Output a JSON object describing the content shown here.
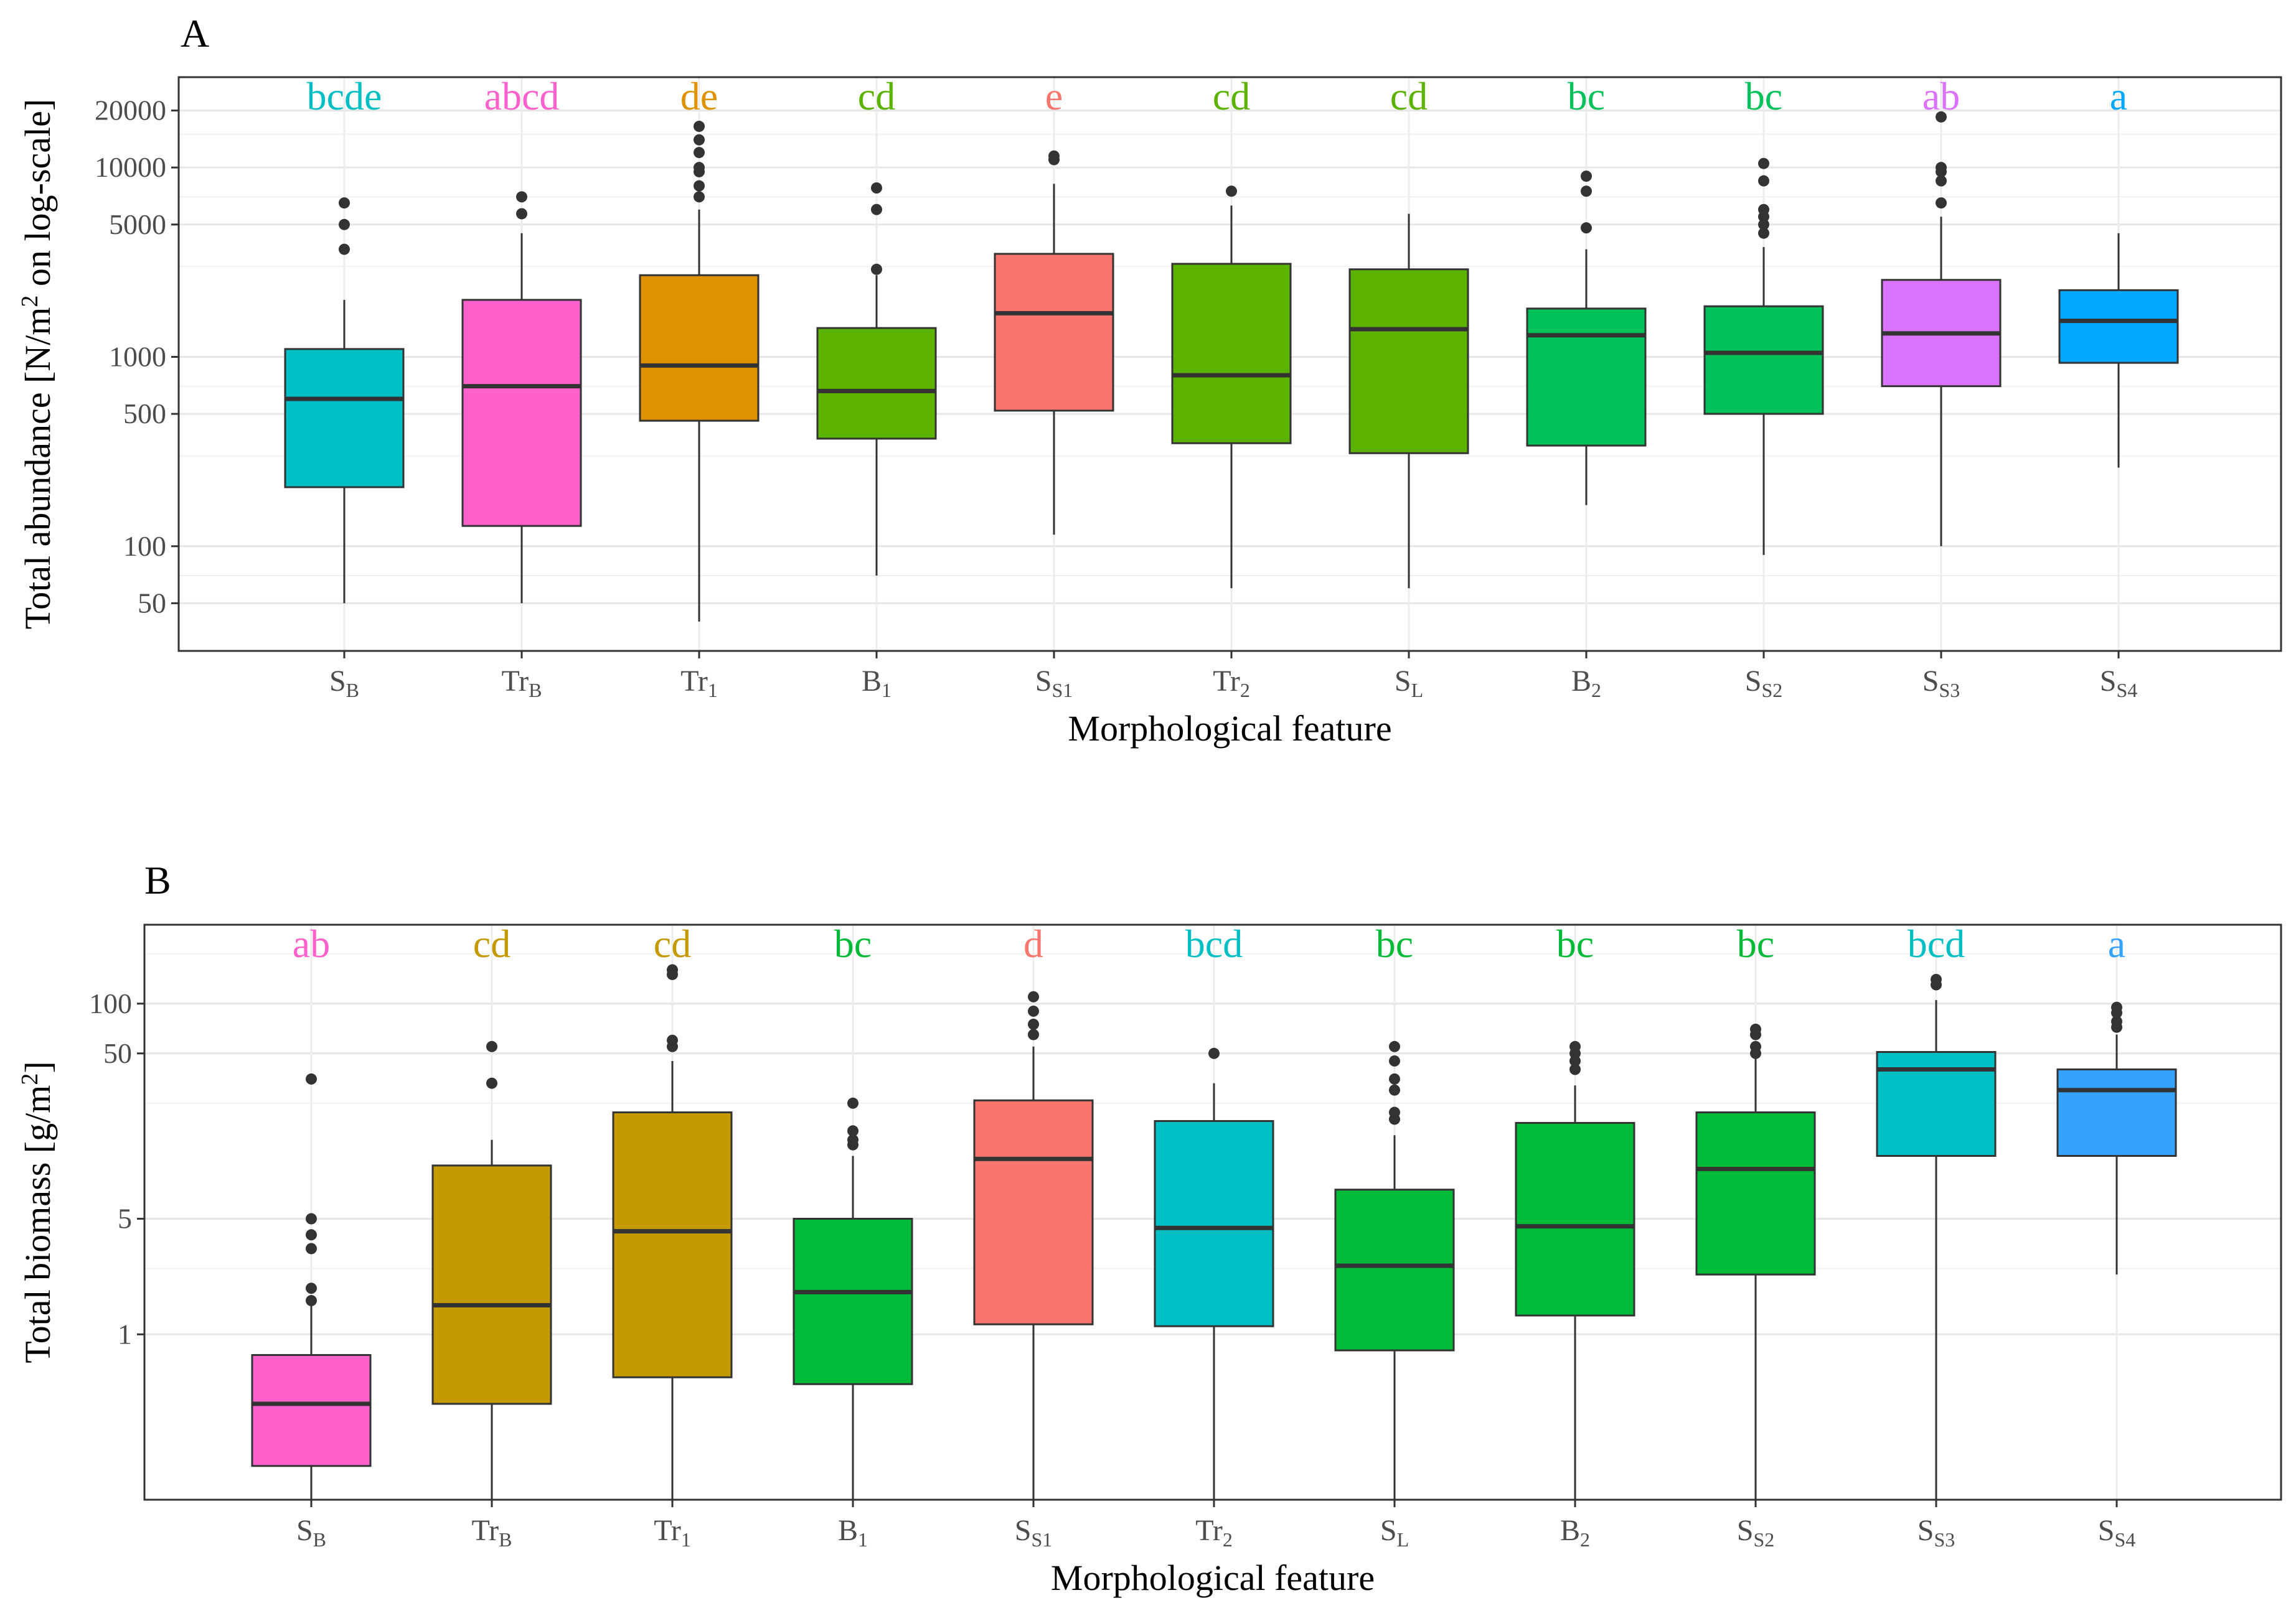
{
  "chart_data": [
    {
      "type": "boxplot",
      "panel_label": "A",
      "ylabel": "Total abundance [N/m² on log-scale]",
      "ylabel_parts": [
        "Total abundance [N/m",
        "2",
        " on log-scale]"
      ],
      "xlabel": "Morphological feature",
      "yscale": "log",
      "ylim": [
        28,
        30000
      ],
      "yticks": [
        50,
        100,
        500,
        1000,
        5000,
        10000,
        20000
      ],
      "ytick_labels": [
        "50",
        "100",
        "500",
        "1000",
        "5000",
        "10000",
        "20000"
      ],
      "minor_gridlines": [
        70,
        300,
        700,
        3000,
        7000,
        15000
      ],
      "categories": [
        {
          "main": "S",
          "sub": "B"
        },
        {
          "main": "Tr",
          "sub": "B"
        },
        {
          "main": "Tr",
          "sub": "1"
        },
        {
          "main": "B",
          "sub": "1"
        },
        {
          "main": "S",
          "sub": "S1"
        },
        {
          "main": "Tr",
          "sub": "2"
        },
        {
          "main": "S",
          "sub": "L"
        },
        {
          "main": "B",
          "sub": "2"
        },
        {
          "main": "S",
          "sub": "S2"
        },
        {
          "main": "S",
          "sub": "S3"
        },
        {
          "main": "S",
          "sub": "S4"
        }
      ],
      "boxes": [
        {
          "q1": 205,
          "median": 600,
          "q3": 1100,
          "whisker_low": 50,
          "whisker_high": 2000,
          "outliers": [
            3700,
            5000,
            6500
          ],
          "color": "#00BFC4",
          "letters": "bcde"
        },
        {
          "q1": 128,
          "median": 700,
          "q3": 2000,
          "whisker_low": 50,
          "whisker_high": 4500,
          "outliers": [
            5700,
            7000
          ],
          "color": "#FF61CC",
          "letters": "abcd"
        },
        {
          "q1": 460,
          "median": 900,
          "q3": 2700,
          "whisker_low": 40,
          "whisker_high": 6000,
          "outliers": [
            7000,
            8000,
            9500,
            10000,
            12000,
            14000,
            16500
          ],
          "color": "#DE9200",
          "letters": "de"
        },
        {
          "q1": 370,
          "median": 660,
          "q3": 1420,
          "whisker_low": 70,
          "whisker_high": 2700,
          "outliers": [
            2900,
            6000,
            7800
          ],
          "color": "#5BB300",
          "letters": "cd"
        },
        {
          "q1": 520,
          "median": 1700,
          "q3": 3500,
          "whisker_low": 115,
          "whisker_high": 8200,
          "outliers": [
            11000,
            11500
          ],
          "color": "#F8766D",
          "letters": "e"
        },
        {
          "q1": 350,
          "median": 800,
          "q3": 3100,
          "whisker_low": 60,
          "whisker_high": 6300,
          "outliers": [
            7500
          ],
          "color": "#5BB300",
          "letters": "cd"
        },
        {
          "q1": 310,
          "median": 1400,
          "q3": 2900,
          "whisker_low": 60,
          "whisker_high": 5700,
          "outliers": [],
          "color": "#5BB300",
          "letters": "cd"
        },
        {
          "q1": 340,
          "median": 1300,
          "q3": 1800,
          "whisker_low": 165,
          "whisker_high": 3700,
          "outliers": [
            4800,
            7500,
            9000
          ],
          "color": "#00C15A",
          "letters": "bc"
        },
        {
          "q1": 500,
          "median": 1050,
          "q3": 1850,
          "whisker_low": 90,
          "whisker_high": 3800,
          "outliers": [
            4500,
            5000,
            5500,
            6000,
            8500,
            10500
          ],
          "color": "#00C15A",
          "letters": "bc"
        },
        {
          "q1": 700,
          "median": 1330,
          "q3": 2550,
          "whisker_low": 100,
          "whisker_high": 5500,
          "outliers": [
            6500,
            8500,
            9500,
            10000,
            18500
          ],
          "color": "#DB72FB",
          "letters": "ab"
        },
        {
          "q1": 930,
          "median": 1550,
          "q3": 2250,
          "whisker_low": 260,
          "whisker_high": 4500,
          "outliers": [],
          "color": "#00A9FF",
          "letters": "a"
        }
      ]
    },
    {
      "type": "boxplot",
      "panel_label": "B",
      "ylabel": "Total biomass [g/m²]",
      "ylabel_parts": [
        "Total biomass [g/m",
        "2",
        "]"
      ],
      "xlabel": "Morphological feature",
      "yscale": "log",
      "ylim": [
        0.1,
        300
      ],
      "yticks": [
        1,
        5,
        50,
        100
      ],
      "ytick_labels": [
        "1",
        "5",
        "50",
        "100"
      ],
      "minor_gridlines": [
        2.5,
        25,
        200
      ],
      "categories": [
        {
          "main": "S",
          "sub": "B"
        },
        {
          "main": "Tr",
          "sub": "B"
        },
        {
          "main": "Tr",
          "sub": "1"
        },
        {
          "main": "B",
          "sub": "1"
        },
        {
          "main": "S",
          "sub": "S1"
        },
        {
          "main": "Tr",
          "sub": "2"
        },
        {
          "main": "S",
          "sub": "L"
        },
        {
          "main": "B",
          "sub": "2"
        },
        {
          "main": "S",
          "sub": "S2"
        },
        {
          "main": "S",
          "sub": "S3"
        },
        {
          "main": "S",
          "sub": "S4"
        }
      ],
      "boxes": [
        {
          "q1": 0.16,
          "median": 0.38,
          "q3": 0.75,
          "whisker_low": 0.1,
          "whisker_high": 1.5,
          "outliers": [
            1.6,
            1.9,
            3.3,
            4.0,
            5.0,
            35
          ],
          "color": "#FF61CC",
          "letters": "ab"
        },
        {
          "q1": 0.38,
          "median": 1.5,
          "q3": 10.5,
          "whisker_low": 0.1,
          "whisker_high": 15,
          "outliers": [
            33,
            55
          ],
          "color": "#C49A00",
          "letters": "cd"
        },
        {
          "q1": 0.55,
          "median": 4.2,
          "q3": 22,
          "whisker_low": 0.1,
          "whisker_high": 45,
          "outliers": [
            55,
            60,
            150,
            160
          ],
          "color": "#C49A00",
          "letters": "cd"
        },
        {
          "q1": 0.5,
          "median": 1.8,
          "q3": 5.0,
          "whisker_low": 0.1,
          "whisker_high": 12,
          "outliers": [
            14,
            15,
            17,
            25
          ],
          "color": "#00BA38",
          "letters": "bc"
        },
        {
          "q1": 1.15,
          "median": 11.5,
          "q3": 26,
          "whisker_low": 0.1,
          "whisker_high": 55,
          "outliers": [
            65,
            75,
            90,
            110
          ],
          "color": "#F8766D",
          "letters": "d"
        },
        {
          "q1": 1.12,
          "median": 4.4,
          "q3": 19.5,
          "whisker_low": 0.1,
          "whisker_high": 33,
          "outliers": [
            50
          ],
          "color": "#00BFC4",
          "letters": "bcd"
        },
        {
          "q1": 0.8,
          "median": 2.6,
          "q3": 7.5,
          "whisker_low": 0.1,
          "whisker_high": 16,
          "outliers": [
            20,
            22,
            30,
            35,
            45,
            55
          ],
          "color": "#00BA38",
          "letters": "bc"
        },
        {
          "q1": 1.3,
          "median": 4.5,
          "q3": 19,
          "whisker_low": 0.1,
          "whisker_high": 32,
          "outliers": [
            40,
            45,
            50,
            55
          ],
          "color": "#00BA38",
          "letters": "bc"
        },
        {
          "q1": 2.3,
          "median": 10,
          "q3": 22,
          "whisker_low": 0.1,
          "whisker_high": 55,
          "outliers": [
            50,
            55,
            65,
            70
          ],
          "color": "#00BA38",
          "letters": "bc"
        },
        {
          "q1": 12,
          "median": 40,
          "q3": 51,
          "whisker_low": 0.1,
          "whisker_high": 105,
          "outliers": [
            130,
            140
          ],
          "color": "#00BFC4",
          "letters": "bcd"
        },
        {
          "q1": 12,
          "median": 30,
          "q3": 40,
          "whisker_low": 2.3,
          "whisker_high": 65,
          "outliers": [
            72,
            78,
            88,
            95
          ],
          "color": "#35A2FF",
          "letters": "a"
        }
      ]
    }
  ]
}
